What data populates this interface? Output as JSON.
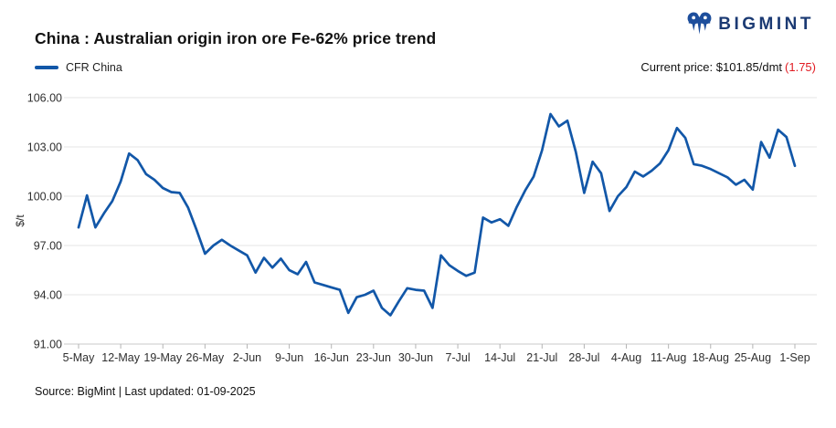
{
  "header": {
    "title": "China : Australian origin iron ore Fe-62% price trend",
    "brand": "BIGMINT",
    "current_price_label": "Current price:",
    "current_price_value": "$101.85/dmt",
    "current_price_change": "(1.75)"
  },
  "legend": {
    "series_label": "CFR China"
  },
  "footer": {
    "source": "Source: BigMint | Last updated: 01-09-2025"
  },
  "colors": {
    "line": "#1257a8",
    "grid": "#e4e4e4",
    "axis": "#c9c9c9",
    "tick": "#b4b4b4",
    "label": "#2f2f2f",
    "negative_change": "#e11b22",
    "brand_navy": "#1b3a73",
    "brand_icon_blue": "#1d4e9c"
  },
  "chart_data": {
    "type": "line",
    "title": "China : Australian origin iron ore Fe-62% price trend",
    "xlabel": "",
    "ylabel": "$/t",
    "ylim": [
      91,
      106
    ],
    "yticks": [
      106,
      103,
      100,
      97,
      94,
      91
    ],
    "ytick_labels": [
      "106.00",
      "103.00",
      "100.00",
      "97.00",
      "94.00",
      "91.00"
    ],
    "grid": "horizontal",
    "legend_position": "top-left",
    "x_tick_every": 5,
    "x": [
      "5-May",
      "6-May",
      "7-May",
      "8-May",
      "9-May",
      "12-May",
      "13-May",
      "14-May",
      "15-May",
      "16-May",
      "19-May",
      "20-May",
      "21-May",
      "22-May",
      "23-May",
      "26-May",
      "27-May",
      "28-May",
      "29-May",
      "30-May",
      "2-Jun",
      "3-Jun",
      "4-Jun",
      "5-Jun",
      "6-Jun",
      "9-Jun",
      "10-Jun",
      "11-Jun",
      "12-Jun",
      "13-Jun",
      "16-Jun",
      "17-Jun",
      "18-Jun",
      "19-Jun",
      "20-Jun",
      "23-Jun",
      "24-Jun",
      "25-Jun",
      "26-Jun",
      "27-Jun",
      "30-Jun",
      "1-Jul",
      "2-Jul",
      "3-Jul",
      "4-Jul",
      "7-Jul",
      "8-Jul",
      "9-Jul",
      "10-Jul",
      "11-Jul",
      "14-Jul",
      "15-Jul",
      "16-Jul",
      "17-Jul",
      "18-Jul",
      "21-Jul",
      "22-Jul",
      "23-Jul",
      "24-Jul",
      "25-Jul",
      "28-Jul",
      "29-Jul",
      "30-Jul",
      "31-Jul",
      "1-Aug",
      "4-Aug",
      "5-Aug",
      "6-Aug",
      "7-Aug",
      "8-Aug",
      "11-Aug",
      "12-Aug",
      "13-Aug",
      "14-Aug",
      "15-Aug",
      "18-Aug",
      "19-Aug",
      "20-Aug",
      "21-Aug",
      "22-Aug",
      "25-Aug",
      "26-Aug",
      "27-Aug",
      "28-Aug",
      "29-Aug",
      "1-Sep"
    ],
    "series": [
      {
        "name": "CFR China",
        "color": "#1257a8",
        "values": [
          98.1,
          100.05,
          98.1,
          98.95,
          99.7,
          100.9,
          102.6,
          102.2,
          101.35,
          101.0,
          100.5,
          100.25,
          100.2,
          99.3,
          97.95,
          96.5,
          97.0,
          97.35,
          97.0,
          96.7,
          96.4,
          95.35,
          96.25,
          95.65,
          96.2,
          95.5,
          95.25,
          96.0,
          94.75,
          94.6,
          94.45,
          94.3,
          92.9,
          93.85,
          94.0,
          94.25,
          93.2,
          92.75,
          93.6,
          94.4,
          94.3,
          94.25,
          93.2,
          96.4,
          95.8,
          95.45,
          95.15,
          95.35,
          98.7,
          98.4,
          98.6,
          98.2,
          99.35,
          100.35,
          101.2,
          102.8,
          105.0,
          104.25,
          104.6,
          102.7,
          100.2,
          102.1,
          101.4,
          99.1,
          100.0,
          100.55,
          101.5,
          101.2,
          101.55,
          102.0,
          102.8,
          104.15,
          103.55,
          101.95,
          101.85,
          101.65,
          101.4,
          101.15,
          100.7,
          101.0,
          100.4,
          103.3,
          102.35,
          104.05,
          103.6,
          101.85
        ]
      }
    ]
  }
}
